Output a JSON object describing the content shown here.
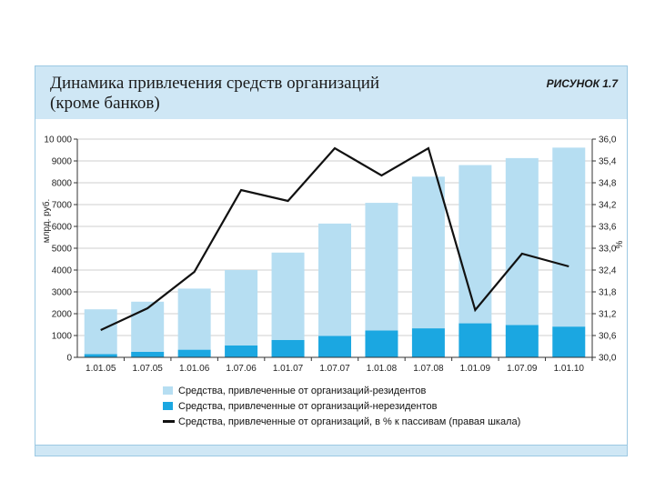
{
  "figure": {
    "title": "Динамика привлечения средств организаций\n(кроме банков)",
    "label": "РИСУНОК 1.7"
  },
  "colors": {
    "residents": "#b6def2",
    "nonresidents": "#1ba7e1",
    "line": "#111111",
    "frame": "#cfe7f5"
  },
  "chart_data": {
    "type": "bar",
    "title": "Динамика привлечения средств организаций (кроме банков)",
    "categories": [
      "1.01.05",
      "1.07.05",
      "1.01.06",
      "1.07.06",
      "1.01.07",
      "1.07.07",
      "1.01.08",
      "1.07.08",
      "1.01.09",
      "1.07.09",
      "1.01.10"
    ],
    "ylabel": "млрд. руб.",
    "y2label": "%",
    "ylim": [
      0,
      10000
    ],
    "yticks": [
      "0",
      "1000",
      "2000",
      "3000",
      "4000",
      "5000",
      "6000",
      "7000",
      "8000",
      "9000",
      "10 000"
    ],
    "y2lim": [
      30.0,
      36.0
    ],
    "y2ticks": [
      "30,0",
      "30,6",
      "31,2",
      "31,8",
      "32,4",
      "33,0",
      "33,6",
      "34,2",
      "34,8",
      "35,4",
      "36,0"
    ],
    "series": [
      {
        "name": "Средства, привлеченные от организаций-резидентов",
        "stack": true,
        "values": [
          2050,
          2300,
          2800,
          3450,
          4000,
          5150,
          5850,
          6950,
          7250,
          7650,
          8200
        ]
      },
      {
        "name": "Средства, привлеченные от организаций-нерезидентов",
        "stack": true,
        "values": [
          150,
          250,
          350,
          550,
          800,
          980,
          1230,
          1330,
          1560,
          1480,
          1410
        ]
      },
      {
        "name": "Средства, привлеченные от организаций, в % к пассивам (правая шкала)",
        "axis": "right",
        "type": "line",
        "values": [
          30.75,
          31.35,
          32.35,
          34.6,
          34.3,
          35.75,
          35.0,
          35.75,
          31.3,
          32.85,
          32.5
        ]
      }
    ]
  }
}
